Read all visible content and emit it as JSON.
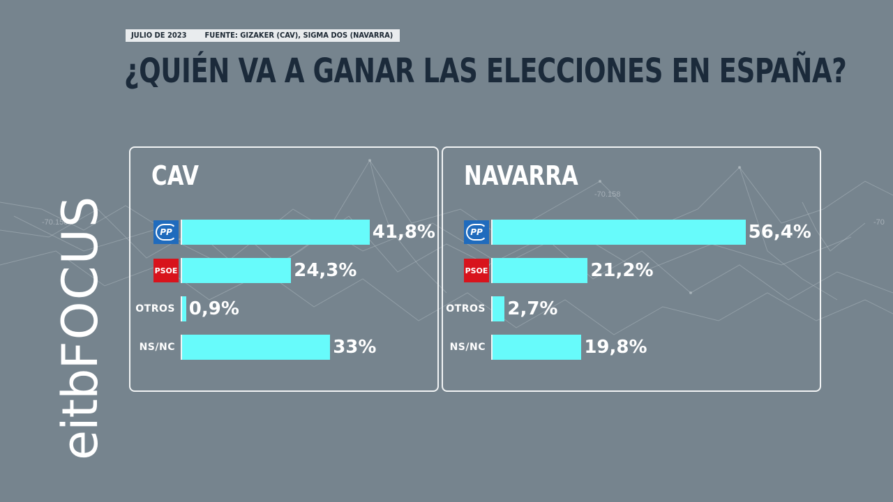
{
  "header": {
    "date": "JULIO DE 2023",
    "source": "FUENTE: GIZAKER (CAV), SIGMA DOS (NAVARRA)",
    "title": "¿QUIÉN VA A GANAR LAS ELECCIONES EN ESPAÑA?"
  },
  "brand": {
    "eitb": "eitb",
    "focus": "FOCUS"
  },
  "background": {
    "labels": [
      "-70.158",
      "-70.158",
      "-70"
    ]
  },
  "colors": {
    "background": "#76848e",
    "bar": "#67fbfb",
    "pp": "#1f6bbd",
    "psoe": "#d8131c",
    "title": "#1b2a3a"
  },
  "chart_data": [
    {
      "type": "bar",
      "title": "CAV",
      "categories": [
        "PP",
        "PSOE",
        "OTROS",
        "NS/NC"
      ],
      "values": [
        41.8,
        24.3,
        0.9,
        33
      ],
      "value_labels": [
        "41,8%",
        "24,3%",
        "0,9%",
        "33%"
      ],
      "xlim": [
        0,
        60
      ],
      "orientation": "horizontal",
      "logos": [
        {
          "type": "pp-icon",
          "text": "PP"
        },
        {
          "type": "psoe-icon",
          "text": "PSOE"
        },
        null,
        null
      ],
      "text_labels": [
        null,
        null,
        "OTROS",
        "NS/NC"
      ]
    },
    {
      "type": "bar",
      "title": "NAVARRA",
      "categories": [
        "PP",
        "PSOE",
        "OTROS",
        "NS/NC"
      ],
      "values": [
        56.4,
        21.2,
        2.7,
        19.8
      ],
      "value_labels": [
        "56,4%",
        "21,2%",
        "2,7%",
        "19,8%"
      ],
      "xlim": [
        0,
        60
      ],
      "orientation": "horizontal",
      "logos": [
        {
          "type": "pp-icon",
          "text": "PP"
        },
        {
          "type": "psoe-icon",
          "text": "PSOE"
        },
        null,
        null
      ],
      "text_labels": [
        null,
        null,
        "OTROS",
        "NS/NC"
      ]
    }
  ]
}
